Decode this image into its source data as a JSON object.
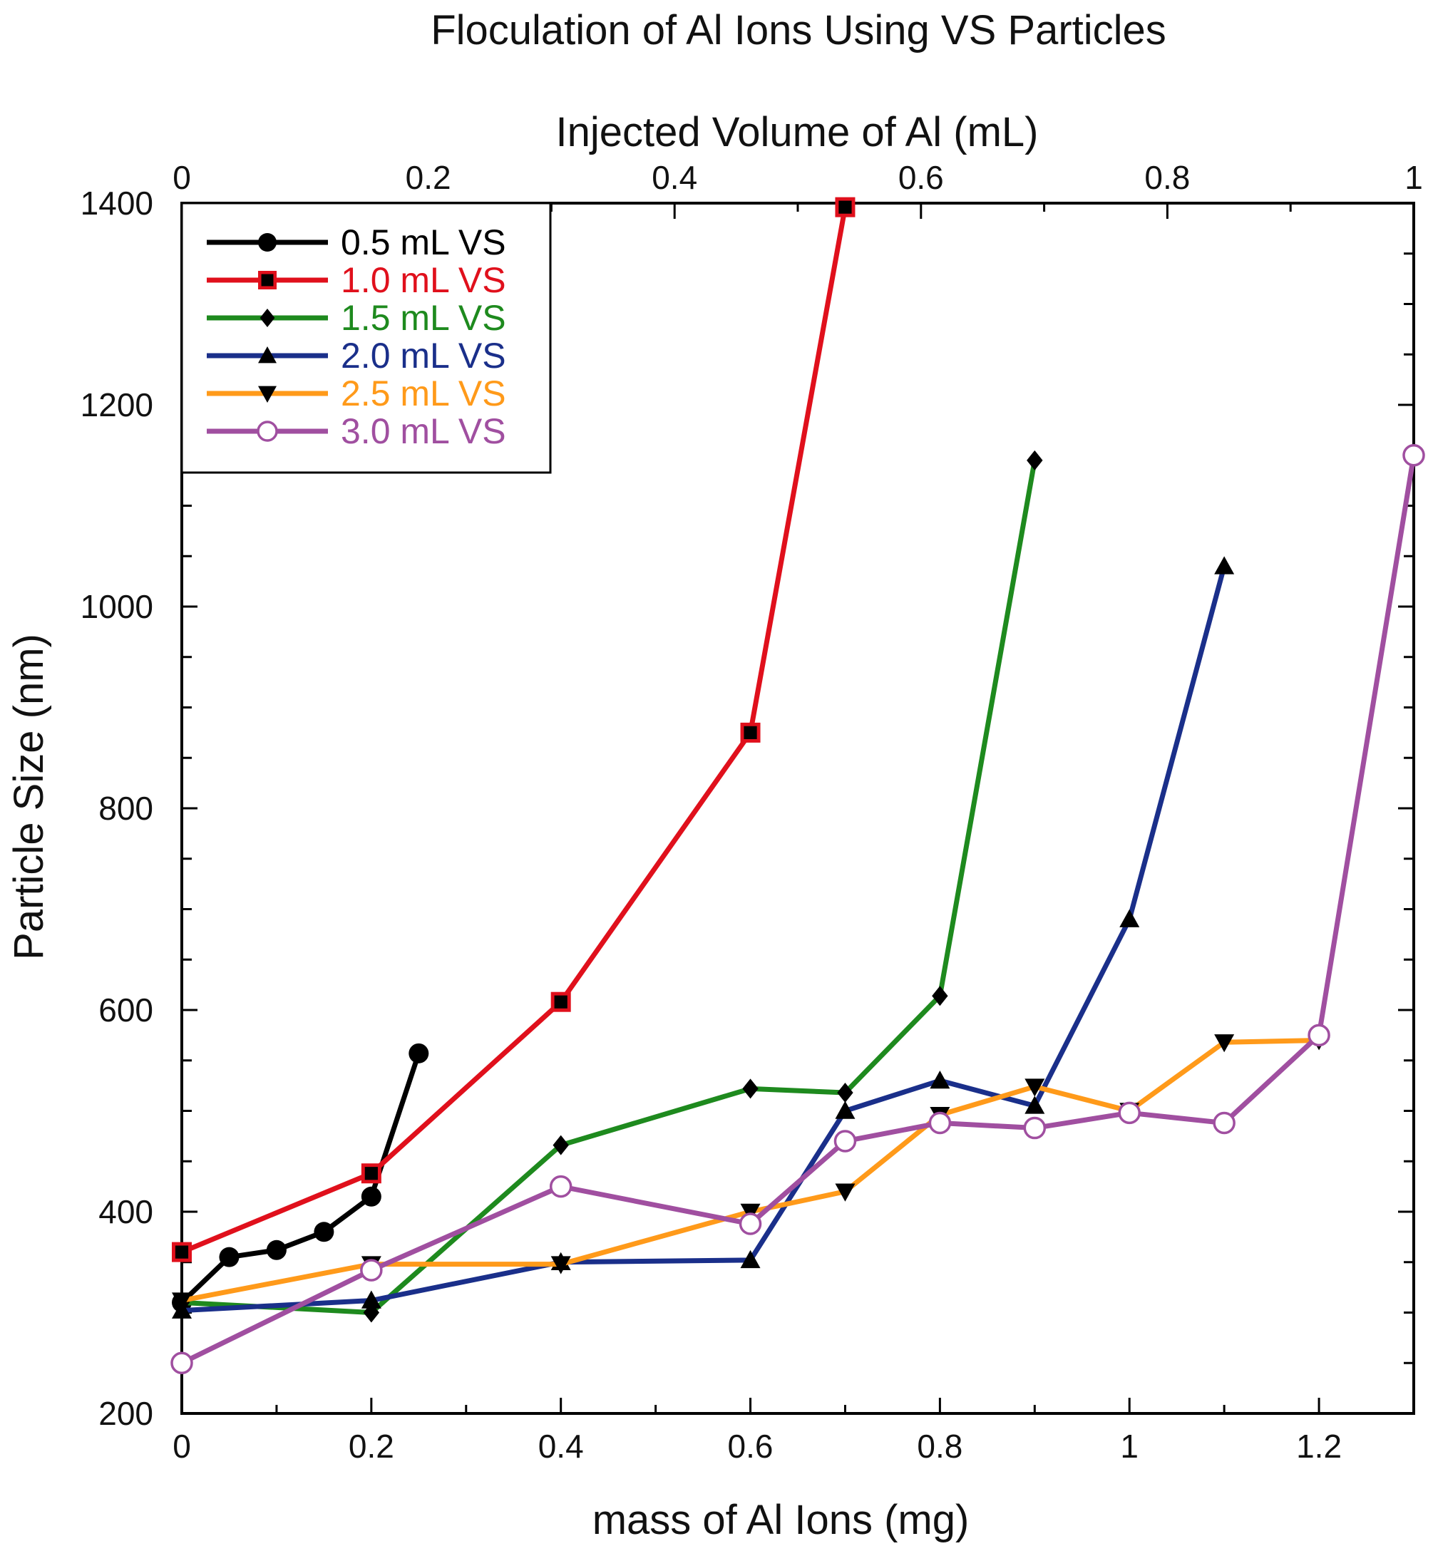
{
  "chart_data": {
    "type": "line",
    "title": "Floculation of Al Ions Using VS Particles",
    "xlabel": "mass of Al Ions (mg)",
    "ylabel": "Particle Size (nm)",
    "x2label": "Injected Volume of Al (mL)",
    "xlim": [
      0,
      1.3
    ],
    "ylim": [
      200,
      1400
    ],
    "x2lim": [
      0,
      1
    ],
    "xticks": [
      "0",
      "0.2",
      "0.4",
      "0.6",
      "0.8",
      "1",
      "1.2"
    ],
    "yticks": [
      "200",
      "400",
      "600",
      "800",
      "1000",
      "1200",
      "1400"
    ],
    "x2ticks": [
      "0",
      "0.2",
      "0.4",
      "0.6",
      "0.8",
      "1"
    ],
    "legend_position": "top-left",
    "grid": false,
    "series": [
      {
        "name": "0.5 mL VS",
        "color": "#000000",
        "marker": "circle",
        "x": [
          0,
          0.05,
          0.1,
          0.15,
          0.2,
          0.25
        ],
        "y": [
          310,
          355,
          362,
          380,
          415,
          557
        ]
      },
      {
        "name": "1.0 mL VS",
        "color": "#e0101c",
        "marker": "square",
        "x": [
          0,
          0.2,
          0.4,
          0.6,
          0.7
        ],
        "y": [
          360,
          438,
          608,
          875,
          1396
        ]
      },
      {
        "name": "1.5 mL VS",
        "color": "#1e8a1e",
        "marker": "diamond",
        "x": [
          0,
          0.2,
          0.4,
          0.6,
          0.7,
          0.8,
          0.9
        ],
        "y": [
          310,
          300,
          466,
          522,
          518,
          614,
          1145
        ]
      },
      {
        "name": "2.0 mL VS",
        "color": "#1a2f8a",
        "marker": "triangle-up",
        "x": [
          0,
          0.2,
          0.4,
          0.6,
          0.7,
          0.8,
          0.9,
          1.0,
          1.1
        ],
        "y": [
          302,
          312,
          350,
          352,
          500,
          530,
          505,
          690,
          1040
        ]
      },
      {
        "name": "2.5 mL VS",
        "color": "#ff9a1a",
        "marker": "triangle-down",
        "x": [
          0,
          0.2,
          0.4,
          0.6,
          0.7,
          0.8,
          0.9,
          1.0,
          1.1,
          1.2
        ],
        "y": [
          312,
          348,
          348,
          400,
          420,
          496,
          524,
          500,
          568,
          570
        ]
      },
      {
        "name": "3.0 mL VS",
        "color": "#a04fa0",
        "marker": "open-circle",
        "x": [
          0,
          0.2,
          0.4,
          0.6,
          0.7,
          0.8,
          0.9,
          1.0,
          1.1,
          1.2,
          1.3
        ],
        "y": [
          250,
          342,
          425,
          388,
          470,
          488,
          483,
          498,
          488,
          575,
          1150
        ]
      }
    ]
  }
}
